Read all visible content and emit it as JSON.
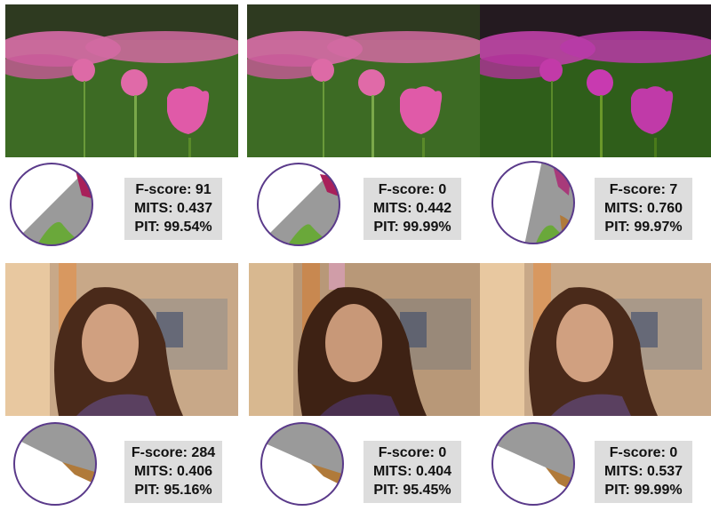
{
  "rows": [
    {
      "subject": "tulips",
      "panels": [
        {
          "fscore": "F-score: 91",
          "mits": "MITS: 0.437",
          "pit": "PIT: 99.54%",
          "tone": "pink"
        },
        {
          "fscore": "F-score: 0",
          "mits": "MITS: 0.442",
          "pit": "PIT: 99.99%",
          "tone": "pink"
        },
        {
          "fscore": "F-score: 7",
          "mits": "MITS: 0.760",
          "pit": "PIT: 99.97%",
          "tone": "magenta"
        }
      ]
    },
    {
      "subject": "portrait",
      "panels": [
        {
          "fscore": "F-score: 284",
          "mits": "MITS: 0.406",
          "pit": "PIT: 95.16%",
          "tone": "warm"
        },
        {
          "fscore": "F-score: 0",
          "mits": "MITS: 0.404",
          "pit": "PIT: 95.45%",
          "tone": "warm"
        },
        {
          "fscore": "F-score: 0",
          "mits": "MITS: 0.537",
          "pit": "PIT: 99.99%",
          "tone": "warm"
        }
      ]
    }
  ],
  "colors": {
    "stats_bg": "#dddddd",
    "wheel_gray": "#9a9a9a",
    "tulip_pink": "#e05aa8",
    "tulip_magenta": "#c03aa8",
    "leaf_green": "#4a8a2a"
  }
}
